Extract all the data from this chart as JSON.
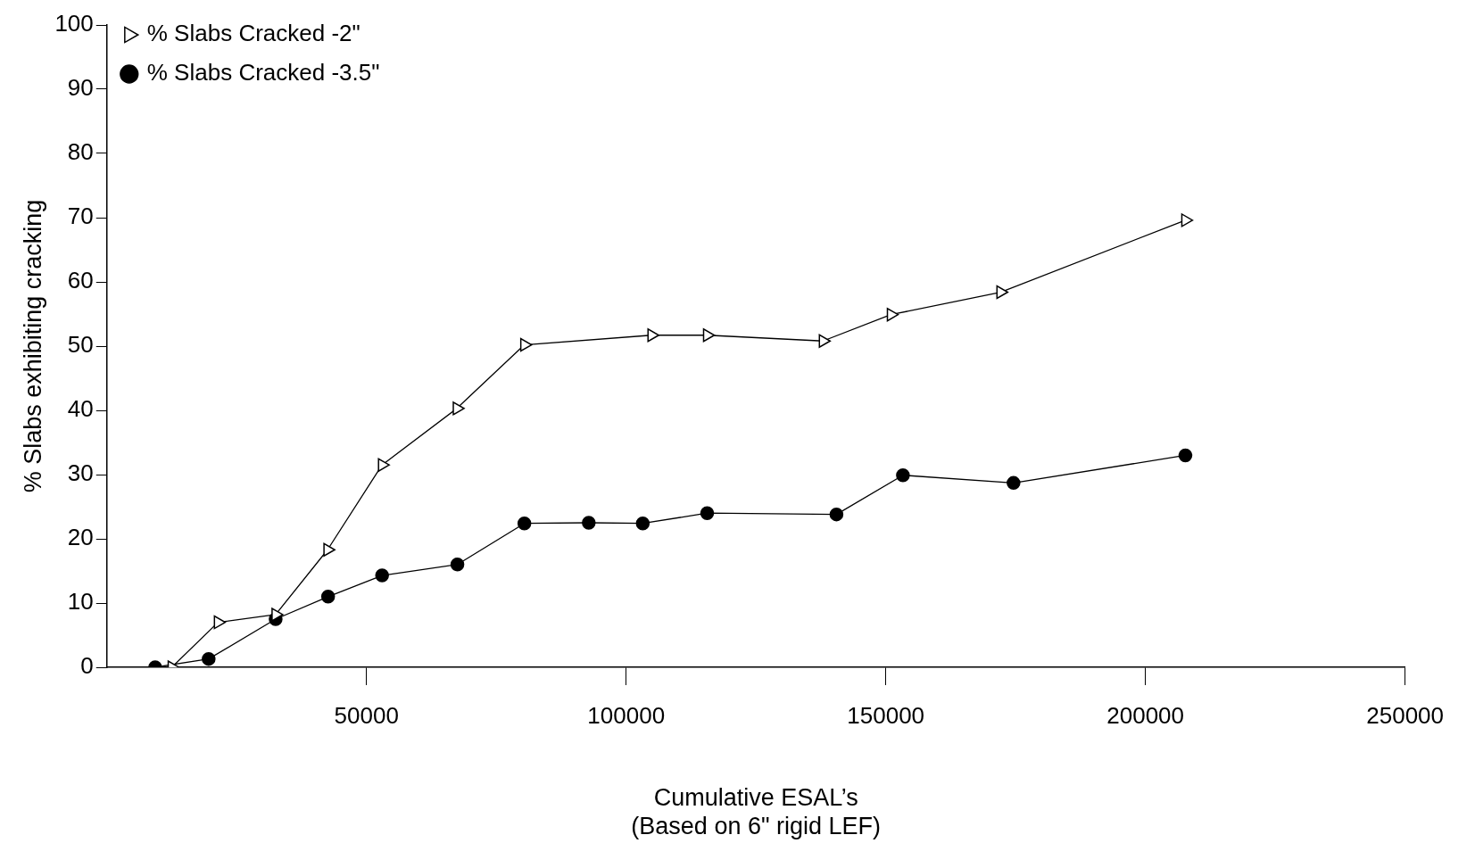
{
  "chart_data": {
    "type": "line",
    "xlabel": "Cumulative ESAL’s\n(Based on 6\" rigid LEF)",
    "ylabel": "% Slabs exhibiting cracking",
    "xlim": [
      0,
      250000
    ],
    "xticks": [
      50000,
      100000,
      150000,
      200000,
      250000
    ],
    "ylim": [
      0,
      100
    ],
    "yticks": [
      0,
      10,
      20,
      30,
      40,
      50,
      60,
      70,
      80,
      90,
      100
    ],
    "grid": false,
    "legend": "top left",
    "line_style": "solid",
    "series": [
      {
        "name": "% Slabs Cracked -3.5\"",
        "color": "#000000",
        "marker": "circle",
        "x": [
          9300,
          19600,
          32500,
          42600,
          53000,
          67500,
          80400,
          92800,
          103200,
          115600,
          140500,
          153300,
          174600,
          207700
        ],
        "values": [
          0,
          1.3,
          7.5,
          11,
          14.3,
          16,
          22.4,
          22.5,
          22.4,
          24,
          23.8,
          29.9,
          28.7,
          33
        ]
      },
      {
        "name": "% Slabs Cracked -2\"",
        "color": "#000000",
        "marker": "triangle",
        "x": [
          12500,
          21400,
          32500,
          42500,
          53000,
          67400,
          80400,
          104900,
          115600,
          137900,
          151000,
          172100,
          207700
        ],
        "values": [
          0,
          7,
          8.2,
          18.3,
          31.5,
          40.3,
          50.2,
          51.7,
          51.7,
          50.8,
          54.9,
          58.4,
          69.6
        ]
      }
    ]
  }
}
